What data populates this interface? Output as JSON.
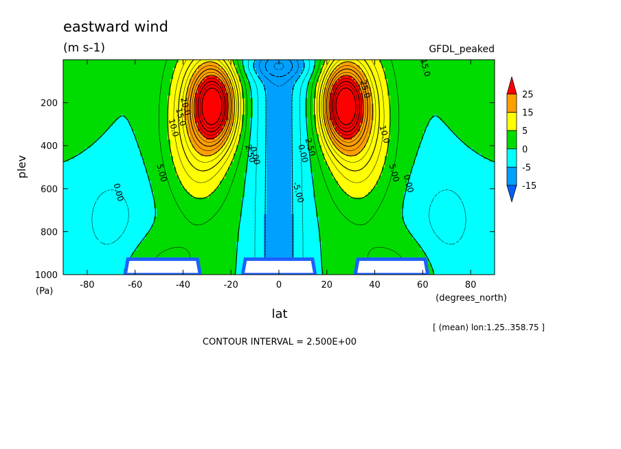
{
  "chart_data": {
    "type": "contour",
    "title": "eastward wind",
    "units": "(m s-1)",
    "dataset": "GFDL_peaked",
    "xlabel": "lat",
    "xunits": "(degrees_north)",
    "ylabel": "plev",
    "yunits": "(Pa)",
    "xlim": [
      -90,
      90
    ],
    "ylim": [
      1000,
      0
    ],
    "xticks": [
      -80,
      -60,
      -40,
      -20,
      0,
      20,
      40,
      60,
      80
    ],
    "yticks": [
      200,
      400,
      600,
      800,
      1000
    ],
    "subtitle": "[ (mean) lon:1.25..358.75 ]",
    "footer": "CONTOUR INTERVAL = 2.500E+00",
    "contour_interval": 2.5,
    "jets": [
      {
        "lat": -27,
        "plev": 200,
        "approx_max": 30
      },
      {
        "lat": 27,
        "plev": 200,
        "approx_max": 30
      }
    ],
    "contour_labels": [
      {
        "text": "0.00",
        "lat": -68,
        "plev": 620
      },
      {
        "text": "5.00",
        "lat": -50,
        "plev": 530
      },
      {
        "text": "10.0",
        "lat": -45,
        "plev": 320
      },
      {
        "text": "15.0",
        "lat": -42,
        "plev": 270
      },
      {
        "text": "20.0",
        "lat": -40,
        "plev": 220
      },
      {
        "text": "0.00",
        "lat": -11,
        "plev": 450
      },
      {
        "text": "2.50",
        "lat": -13,
        "plev": 440
      },
      {
        "text": "0.00",
        "lat": 9,
        "plev": 440
      },
      {
        "text": "2.50",
        "lat": 12,
        "plev": 410
      },
      {
        "text": "-5.00",
        "lat": 7,
        "plev": 620
      },
      {
        "text": "10.0",
        "lat": 43,
        "plev": 350
      },
      {
        "text": "5.00",
        "lat": 47,
        "plev": 530
      },
      {
        "text": "0.00",
        "lat": 53,
        "plev": 580
      },
      {
        "text": "25.0",
        "lat": 35,
        "plev": 140
      },
      {
        "text": "15.0",
        "lat": 60,
        "plev": 40
      }
    ],
    "legend": {
      "labels": [
        "25",
        "15",
        "5",
        "0",
        "-5",
        "-15"
      ],
      "colors": [
        "#ff0000",
        "#ff9f00",
        "#ffff00",
        "#00dc00",
        "#00ffff",
        "#00a0ff",
        "#0060ff"
      ]
    }
  }
}
